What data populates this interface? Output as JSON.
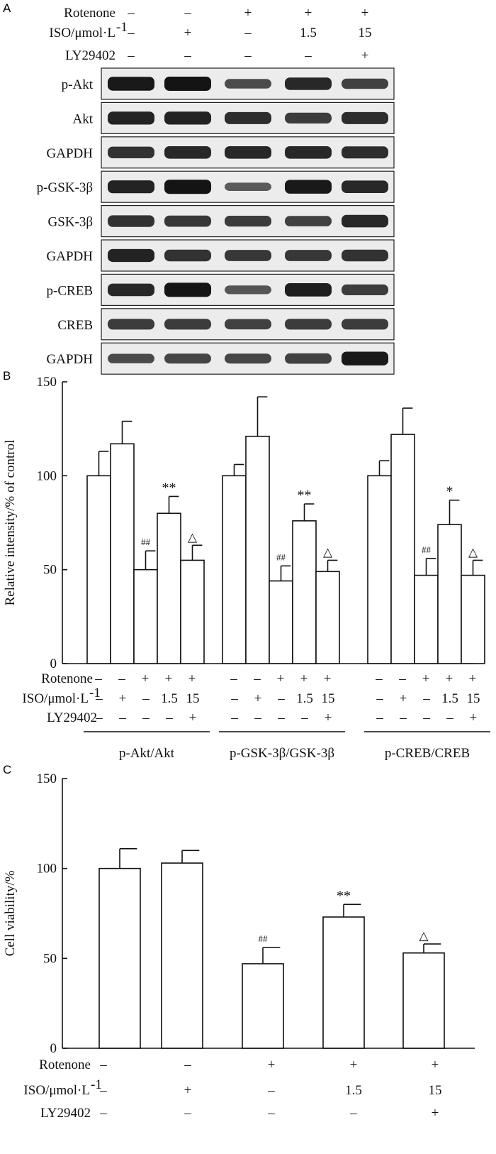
{
  "panels": {
    "a": "A",
    "b": "B",
    "c": "C"
  },
  "conditions": {
    "row_labels": {
      "rotenone": "Rotenone",
      "iso": "ISO/μmol·L",
      "iso_sup": "-1",
      "ly": "LY29402"
    },
    "rotenone": [
      "–",
      "–",
      "+",
      "+",
      "+"
    ],
    "iso": [
      "–",
      "+",
      "–",
      "1.5",
      "15"
    ],
    "ly": [
      "–",
      "–",
      "–",
      "–",
      "+"
    ]
  },
  "blot": {
    "rows": [
      {
        "label": "p-Akt",
        "intensity": [
          0.95,
          1.0,
          0.45,
          0.8,
          0.55
        ]
      },
      {
        "label": "Akt",
        "intensity": [
          0.85,
          0.85,
          0.75,
          0.6,
          0.75
        ]
      },
      {
        "label": "GAPDH",
        "intensity": [
          0.7,
          0.8,
          0.8,
          0.8,
          0.75
        ]
      },
      {
        "label": "p-GSK-3β",
        "intensity": [
          0.85,
          1.0,
          0.3,
          0.95,
          0.8
        ]
      },
      {
        "label": "GSK-3β",
        "intensity": [
          0.7,
          0.65,
          0.6,
          0.55,
          0.8
        ]
      },
      {
        "label": "GAPDH",
        "intensity": [
          0.85,
          0.7,
          0.65,
          0.65,
          0.7
        ]
      },
      {
        "label": "p-CREB",
        "intensity": [
          0.8,
          1.0,
          0.35,
          0.9,
          0.6
        ]
      },
      {
        "label": "CREB",
        "intensity": [
          0.6,
          0.6,
          0.55,
          0.6,
          0.6
        ]
      },
      {
        "label": "GAPDH",
        "intensity": [
          0.45,
          0.5,
          0.5,
          0.55,
          0.95
        ]
      }
    ]
  },
  "chart_data": [
    {
      "type": "bar",
      "panel": "B",
      "ylabel": "Relative intensity/% of control",
      "ylim": [
        0,
        150
      ],
      "yticks": [
        0,
        50,
        100,
        150
      ],
      "groups": [
        {
          "name": "p-Akt/Akt",
          "values": [
            100,
            117,
            50,
            80,
            55
          ],
          "errors": [
            13,
            12,
            10,
            9,
            8
          ],
          "marks": [
            "",
            "",
            "##",
            "**",
            "△"
          ]
        },
        {
          "name": "p-GSK-3β/GSK-3β",
          "values": [
            100,
            121,
            44,
            76,
            49
          ],
          "errors": [
            6,
            21,
            8,
            9,
            6
          ],
          "marks": [
            "",
            "",
            "##",
            "**",
            "△"
          ]
        },
        {
          "name": "p-CREB/CREB",
          "values": [
            100,
            122,
            47,
            74,
            47
          ],
          "errors": [
            8,
            14,
            9,
            13,
            8
          ],
          "marks": [
            "",
            "",
            "##",
            "*",
            "△"
          ]
        }
      ]
    },
    {
      "type": "bar",
      "panel": "C",
      "ylabel": "Cell viability/%",
      "ylim": [
        0,
        150
      ],
      "yticks": [
        0,
        50,
        100,
        150
      ],
      "values": [
        100,
        103,
        47,
        73,
        53
      ],
      "errors": [
        11,
        7,
        9,
        7,
        5
      ],
      "marks": [
        "",
        "",
        "##",
        "**",
        "△"
      ]
    }
  ]
}
